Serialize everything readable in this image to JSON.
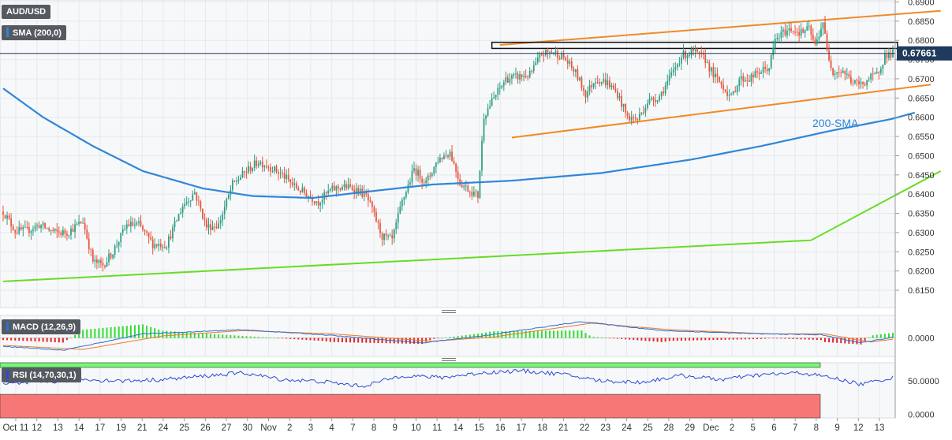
{
  "instrument_label": "AUD/USD",
  "sma_label": "SMA (200,0)",
  "macd_label": "MACD (12,26,9)",
  "rsi_label": "RSI (14,70,30,1)",
  "sma_annotation": "200-SMA",
  "colors": {
    "up": "#2e9e84",
    "down": "#e8563c",
    "sma": "#2f86d9",
    "trend": "#66dd22",
    "channel": "#f08a28",
    "macd_line": "#2a6fd6",
    "signal_line": "#f07a20",
    "hist_pos": "#33dd33",
    "hist_neg": "#e52222",
    "rsi_line": "#2a4bd6",
    "rsi_over": "#77f777",
    "rsi_under": "#f77777",
    "price_tag": "#1f3a5c"
  },
  "chart_data": [
    {
      "type": "candlestick",
      "title": "AUD/USD",
      "x_tick_labels": [
        "Oct 11",
        "12",
        "13",
        "14",
        "17",
        "19",
        "21",
        "24",
        "25",
        "26",
        "27",
        "30",
        "Nov",
        "2",
        "3",
        "4",
        "7",
        "8",
        "9",
        "10",
        "11",
        "14",
        "15",
        "16",
        "17",
        "18",
        "21",
        "22",
        "23",
        "24",
        "25",
        "28",
        "29",
        "Dec",
        "2",
        "5",
        "6",
        "7",
        "8",
        "9",
        "12",
        "13"
      ],
      "y_tick_labels": [
        "0.6900",
        "0.6850",
        "0.6800",
        "0.6750",
        "0.6700",
        "0.6650",
        "0.6600",
        "0.6550",
        "0.6500",
        "0.6450",
        "0.6400",
        "0.6350",
        "0.6300",
        "0.6250",
        "0.6200",
        "0.6150"
      ],
      "ylim": [
        0.6105,
        0.6905
      ],
      "last_price_label": "0.67661",
      "last_price": 0.67661,
      "sma_200_anchors": [
        [
          0,
          0.6675
        ],
        [
          20,
          0.66
        ],
        [
          45,
          0.6525
        ],
        [
          70,
          0.646
        ],
        [
          100,
          0.6415
        ],
        [
          125,
          0.6395
        ],
        [
          155,
          0.639
        ],
        [
          180,
          0.6405
        ],
        [
          215,
          0.6425
        ],
        [
          255,
          0.6435
        ],
        [
          300,
          0.6455
        ],
        [
          345,
          0.649
        ],
        [
          380,
          0.6525
        ],
        [
          415,
          0.6565
        ],
        [
          445,
          0.6595
        ],
        [
          457,
          0.6612
        ]
      ],
      "rising_support_line": [
        [
          0,
          0.6173
        ],
        [
          405,
          0.628
        ],
        [
          470,
          0.646
        ]
      ],
      "channel_upper": [
        [
          249,
          0.6788
        ],
        [
          470,
          0.6877
        ]
      ],
      "channel_lower": [
        [
          255,
          0.6547
        ],
        [
          465,
          0.6685
        ]
      ],
      "resistance_zone": [
        0.6779,
        0.6795
      ],
      "candle_path_anchors": [
        [
          0,
          0.6355
        ],
        [
          6,
          0.6305
        ],
        [
          12,
          0.6305
        ],
        [
          18,
          0.632
        ],
        [
          26,
          0.63
        ],
        [
          32,
          0.63
        ],
        [
          40,
          0.633
        ],
        [
          45,
          0.6225
        ],
        [
          50,
          0.6215
        ],
        [
          55,
          0.625
        ],
        [
          62,
          0.632
        ],
        [
          68,
          0.632
        ],
        [
          75,
          0.627
        ],
        [
          82,
          0.627
        ],
        [
          90,
          0.637
        ],
        [
          96,
          0.6405
        ],
        [
          102,
          0.6315
        ],
        [
          108,
          0.632
        ],
        [
          115,
          0.6425
        ],
        [
          122,
          0.646
        ],
        [
          128,
          0.6485
        ],
        [
          134,
          0.647
        ],
        [
          140,
          0.645
        ],
        [
          146,
          0.642
        ],
        [
          152,
          0.64
        ],
        [
          158,
          0.638
        ],
        [
          164,
          0.641
        ],
        [
          170,
          0.642
        ],
        [
          176,
          0.6415
        ],
        [
          182,
          0.6395
        ],
        [
          186,
          0.6345
        ],
        [
          190,
          0.629
        ],
        [
          195,
          0.628
        ],
        [
          200,
          0.638
        ],
        [
          206,
          0.6465
        ],
        [
          212,
          0.643
        ],
        [
          218,
          0.649
        ],
        [
          224,
          0.651
        ],
        [
          229,
          0.643
        ],
        [
          234,
          0.641
        ],
        [
          238,
          0.6395
        ],
        [
          241,
          0.6605
        ],
        [
          246,
          0.665
        ],
        [
          252,
          0.67
        ],
        [
          258,
          0.6705
        ],
        [
          264,
          0.671
        ],
        [
          270,
          0.6765
        ],
        [
          276,
          0.677
        ],
        [
          281,
          0.6755
        ],
        [
          287,
          0.6715
        ],
        [
          292,
          0.666
        ],
        [
          297,
          0.67
        ],
        [
          303,
          0.669
        ],
        [
          308,
          0.666
        ],
        [
          313,
          0.66
        ],
        [
          318,
          0.6595
        ],
        [
          323,
          0.664
        ],
        [
          329,
          0.6655
        ],
        [
          334,
          0.67
        ],
        [
          340,
          0.676
        ],
        [
          346,
          0.677
        ],
        [
          352,
          0.675
        ],
        [
          356,
          0.671
        ],
        [
          361,
          0.668
        ],
        [
          365,
          0.665
        ],
        [
          369,
          0.67
        ],
        [
          374,
          0.67
        ],
        [
          380,
          0.672
        ],
        [
          384,
          0.673
        ],
        [
          387,
          0.68
        ],
        [
          391,
          0.682
        ],
        [
          395,
          0.683
        ],
        [
          400,
          0.682
        ],
        [
          404,
          0.683
        ],
        [
          407,
          0.6785
        ],
        [
          411,
          0.685
        ],
        [
          413,
          0.677
        ],
        [
          416,
          0.672
        ],
        [
          421,
          0.672
        ],
        [
          426,
          0.669
        ],
        [
          430,
          0.6685
        ],
        [
          434,
          0.67
        ],
        [
          438,
          0.671
        ],
        [
          442,
          0.676
        ],
        [
          446,
          0.6766
        ]
      ],
      "macd": {
        "ylabel_ticks": [
          "0.0000"
        ],
        "macd_anchors": [
          [
            0,
            -0.002
          ],
          [
            30,
            -0.003
          ],
          [
            70,
            0.001
          ],
          [
            120,
            0.002
          ],
          [
            160,
            0.0008
          ],
          [
            210,
            -0.0012
          ],
          [
            240,
            0.0005
          ],
          [
            290,
            0.004
          ],
          [
            330,
            0.0018
          ],
          [
            380,
            0.001
          ],
          [
            410,
            0.0008
          ],
          [
            430,
            -0.0012
          ],
          [
            446,
            0.0002
          ]
        ],
        "signal_anchors": [
          [
            0,
            -0.0018
          ],
          [
            40,
            -0.0028
          ],
          [
            80,
            0.0005
          ],
          [
            120,
            0.0018
          ],
          [
            165,
            0.001
          ],
          [
            215,
            -0.0008
          ],
          [
            245,
            0.0002
          ],
          [
            295,
            0.0036
          ],
          [
            335,
            0.002
          ],
          [
            385,
            0.001
          ],
          [
            412,
            0.001
          ],
          [
            435,
            -0.001
          ],
          [
            446,
            -0.0003
          ]
        ],
        "ylim": [
          -0.0045,
          0.0055
        ]
      },
      "rsi": {
        "ylabel_ticks": [
          "50.0000",
          "0.0000"
        ],
        "overbought": 70,
        "oversold": 30,
        "ylim": [
          -5,
          77
        ],
        "rsi_anchors": [
          [
            0,
            45
          ],
          [
            20,
            48
          ],
          [
            40,
            52
          ],
          [
            60,
            50
          ],
          [
            80,
            52
          ],
          [
            100,
            57
          ],
          [
            120,
            62
          ],
          [
            140,
            52
          ],
          [
            160,
            49
          ],
          [
            180,
            42
          ],
          [
            200,
            58
          ],
          [
            220,
            55
          ],
          [
            240,
            62
          ],
          [
            260,
            65
          ],
          [
            280,
            60
          ],
          [
            300,
            50
          ],
          [
            320,
            48
          ],
          [
            340,
            58
          ],
          [
            360,
            52
          ],
          [
            380,
            59
          ],
          [
            400,
            62
          ],
          [
            415,
            55
          ],
          [
            430,
            45
          ],
          [
            446,
            55
          ]
        ]
      }
    }
  ]
}
